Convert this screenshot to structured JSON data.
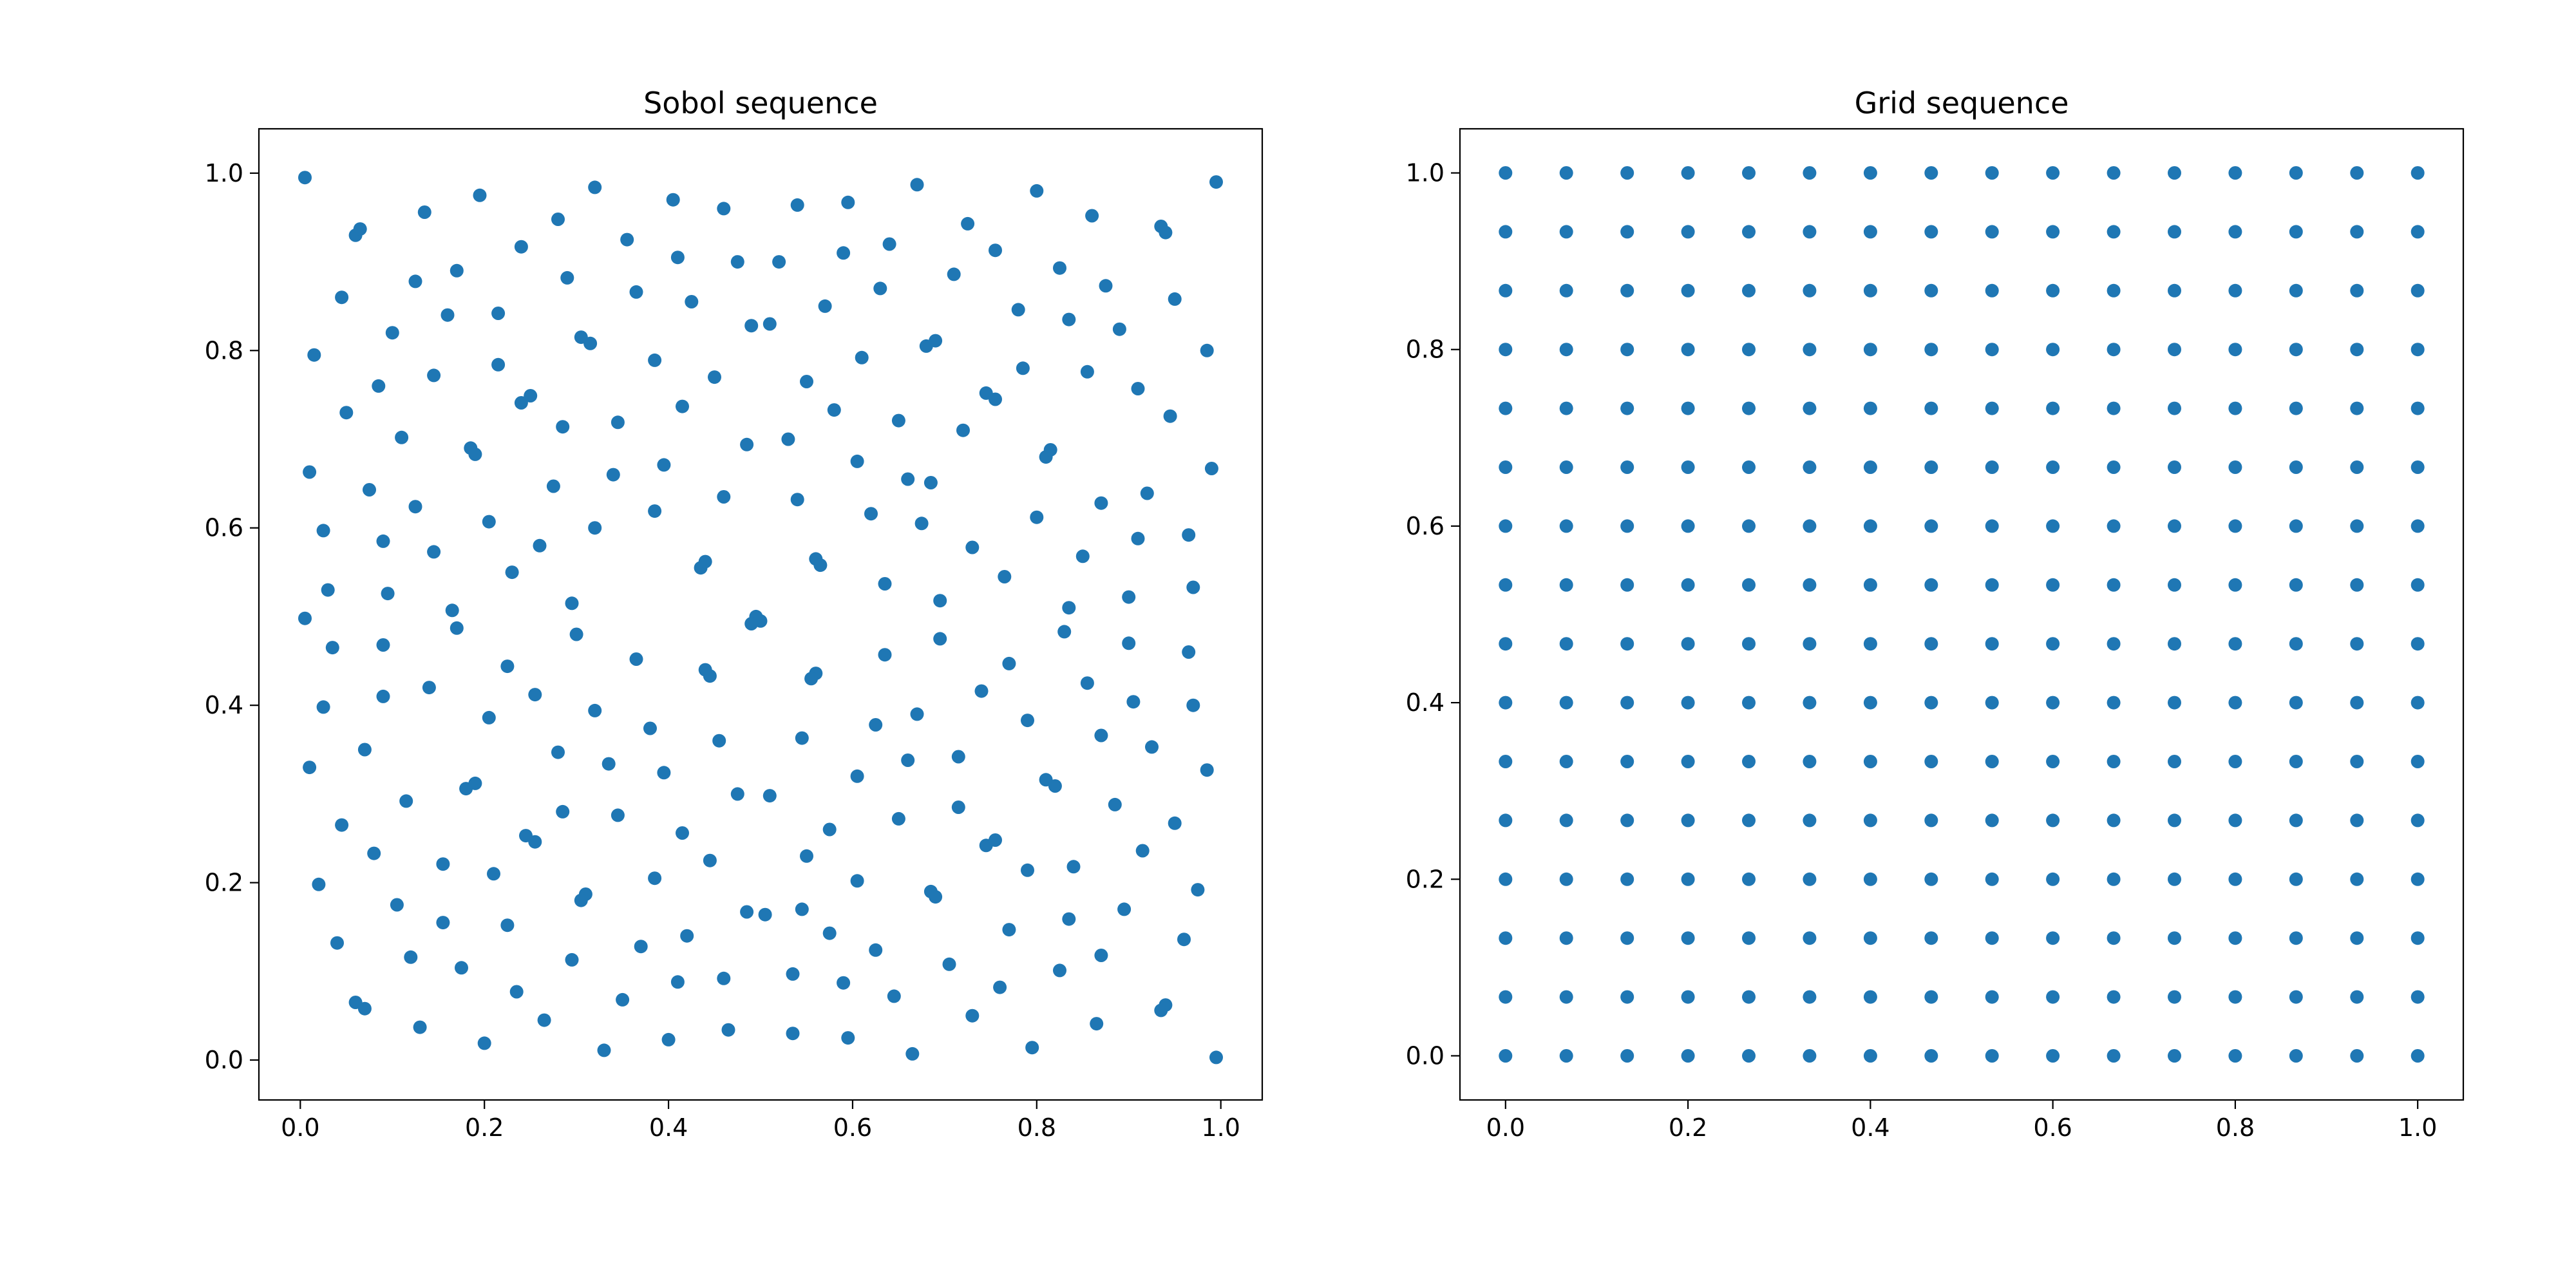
{
  "chart_data": [
    {
      "type": "scatter",
      "title": "Sobol sequence",
      "xlabel": "",
      "ylabel": "",
      "xlim": [
        -0.045,
        1.045
      ],
      "ylim": [
        -0.045,
        1.05
      ],
      "xticks": [
        "0.0",
        "0.2",
        "0.4",
        "0.6",
        "0.8",
        "1.0"
      ],
      "yticks": [
        "0.0",
        "0.2",
        "0.4",
        "0.6",
        "0.8",
        "1.0"
      ],
      "grid": false,
      "color": "#1f77b4",
      "points": [
        [
          0.005,
          0.995
        ],
        [
          0.06,
          0.93
        ],
        [
          0.065,
          0.937
        ],
        [
          0.135,
          0.956
        ],
        [
          0.195,
          0.975
        ],
        [
          0.32,
          0.984
        ],
        [
          0.405,
          0.97
        ],
        [
          0.46,
          0.96
        ],
        [
          0.54,
          0.964
        ],
        [
          0.595,
          0.967
        ],
        [
          0.67,
          0.987
        ],
        [
          0.8,
          0.98
        ],
        [
          0.995,
          0.99
        ],
        [
          0.935,
          0.94
        ],
        [
          0.94,
          0.933
        ],
        [
          0.86,
          0.952
        ],
        [
          0.725,
          0.943
        ],
        [
          0.755,
          0.913
        ],
        [
          0.64,
          0.92
        ],
        [
          0.59,
          0.91
        ],
        [
          0.52,
          0.9
        ],
        [
          0.475,
          0.9
        ],
        [
          0.41,
          0.905
        ],
        [
          0.355,
          0.925
        ],
        [
          0.28,
          0.948
        ],
        [
          0.24,
          0.917
        ],
        [
          0.17,
          0.89
        ],
        [
          0.125,
          0.878
        ],
        [
          0.045,
          0.86
        ],
        [
          0.015,
          0.795
        ],
        [
          0.1,
          0.82
        ],
        [
          0.16,
          0.84
        ],
        [
          0.215,
          0.842
        ],
        [
          0.29,
          0.882
        ],
        [
          0.365,
          0.866
        ],
        [
          0.425,
          0.855
        ],
        [
          0.49,
          0.828
        ],
        [
          0.51,
          0.83
        ],
        [
          0.57,
          0.85
        ],
        [
          0.63,
          0.87
        ],
        [
          0.71,
          0.886
        ],
        [
          0.78,
          0.846
        ],
        [
          0.825,
          0.893
        ],
        [
          0.875,
          0.873
        ],
        [
          0.95,
          0.858
        ],
        [
          0.985,
          0.8
        ],
        [
          0.89,
          0.824
        ],
        [
          0.835,
          0.835
        ],
        [
          0.785,
          0.78
        ],
        [
          0.68,
          0.805
        ],
        [
          0.69,
          0.811
        ],
        [
          0.61,
          0.792
        ],
        [
          0.55,
          0.765
        ],
        [
          0.45,
          0.77
        ],
        [
          0.385,
          0.789
        ],
        [
          0.305,
          0.815
        ],
        [
          0.315,
          0.808
        ],
        [
          0.215,
          0.784
        ],
        [
          0.145,
          0.772
        ],
        [
          0.085,
          0.76
        ],
        [
          0.05,
          0.73
        ],
        [
          0.11,
          0.702
        ],
        [
          0.185,
          0.69
        ],
        [
          0.19,
          0.683
        ],
        [
          0.24,
          0.741
        ],
        [
          0.25,
          0.749
        ],
        [
          0.285,
          0.714
        ],
        [
          0.345,
          0.719
        ],
        [
          0.415,
          0.737
        ],
        [
          0.485,
          0.694
        ],
        [
          0.53,
          0.7
        ],
        [
          0.58,
          0.733
        ],
        [
          0.65,
          0.721
        ],
        [
          0.72,
          0.71
        ],
        [
          0.745,
          0.752
        ],
        [
          0.755,
          0.745
        ],
        [
          0.81,
          0.68
        ],
        [
          0.815,
          0.688
        ],
        [
          0.855,
          0.776
        ],
        [
          0.91,
          0.757
        ],
        [
          0.945,
          0.726
        ],
        [
          0.99,
          0.667
        ],
        [
          0.92,
          0.639
        ],
        [
          0.87,
          0.628
        ],
        [
          0.85,
          0.568
        ],
        [
          0.8,
          0.612
        ],
        [
          0.73,
          0.578
        ],
        [
          0.685,
          0.651
        ],
        [
          0.66,
          0.655
        ],
        [
          0.605,
          0.675
        ],
        [
          0.54,
          0.632
        ],
        [
          0.46,
          0.635
        ],
        [
          0.395,
          0.671
        ],
        [
          0.34,
          0.66
        ],
        [
          0.275,
          0.647
        ],
        [
          0.205,
          0.607
        ],
        [
          0.125,
          0.624
        ],
        [
          0.075,
          0.643
        ],
        [
          0.01,
          0.663
        ],
        [
          0.025,
          0.597
        ],
        [
          0.09,
          0.585
        ],
        [
          0.145,
          0.573
        ],
        [
          0.23,
          0.55
        ],
        [
          0.26,
          0.58
        ],
        [
          0.32,
          0.6
        ],
        [
          0.385,
          0.619
        ],
        [
          0.435,
          0.555
        ],
        [
          0.44,
          0.562
        ],
        [
          0.56,
          0.565
        ],
        [
          0.565,
          0.558
        ],
        [
          0.62,
          0.616
        ],
        [
          0.675,
          0.605
        ],
        [
          0.765,
          0.545
        ],
        [
          0.635,
          0.537
        ],
        [
          0.695,
          0.518
        ],
        [
          0.835,
          0.51
        ],
        [
          0.9,
          0.522
        ],
        [
          0.91,
          0.588
        ],
        [
          0.965,
          0.592
        ],
        [
          0.97,
          0.533
        ],
        [
          0.965,
          0.46
        ],
        [
          0.9,
          0.47
        ],
        [
          0.83,
          0.483
        ],
        [
          0.77,
          0.447
        ],
        [
          0.695,
          0.475
        ],
        [
          0.635,
          0.457
        ],
        [
          0.56,
          0.436
        ],
        [
          0.555,
          0.43
        ],
        [
          0.495,
          0.5
        ],
        [
          0.5,
          0.495
        ],
        [
          0.49,
          0.492
        ],
        [
          0.44,
          0.44
        ],
        [
          0.445,
          0.433
        ],
        [
          0.365,
          0.452
        ],
        [
          0.3,
          0.48
        ],
        [
          0.295,
          0.515
        ],
        [
          0.225,
          0.444
        ],
        [
          0.17,
          0.487
        ],
        [
          0.165,
          0.507
        ],
        [
          0.095,
          0.526
        ],
        [
          0.03,
          0.53
        ],
        [
          0.005,
          0.498
        ],
        [
          0.035,
          0.465
        ],
        [
          0.09,
          0.468
        ],
        [
          0.09,
          0.41
        ],
        [
          0.14,
          0.42
        ],
        [
          0.205,
          0.386
        ],
        [
          0.255,
          0.412
        ],
        [
          0.32,
          0.394
        ],
        [
          0.38,
          0.374
        ],
        [
          0.455,
          0.36
        ],
        [
          0.545,
          0.363
        ],
        [
          0.625,
          0.378
        ],
        [
          0.67,
          0.39
        ],
        [
          0.74,
          0.416
        ],
        [
          0.79,
          0.383
        ],
        [
          0.855,
          0.425
        ],
        [
          0.87,
          0.366
        ],
        [
          0.905,
          0.404
        ],
        [
          0.925,
          0.353
        ],
        [
          0.97,
          0.4
        ],
        [
          0.985,
          0.327
        ],
        [
          0.95,
          0.267
        ],
        [
          0.915,
          0.236
        ],
        [
          0.885,
          0.288
        ],
        [
          0.81,
          0.316
        ],
        [
          0.82,
          0.309
        ],
        [
          0.715,
          0.342
        ],
        [
          0.66,
          0.338
        ],
        [
          0.605,
          0.32
        ],
        [
          0.55,
          0.23
        ],
        [
          0.51,
          0.298
        ],
        [
          0.475,
          0.3
        ],
        [
          0.395,
          0.324
        ],
        [
          0.335,
          0.334
        ],
        [
          0.28,
          0.347
        ],
        [
          0.18,
          0.306
        ],
        [
          0.19,
          0.312
        ],
        [
          0.115,
          0.292
        ],
        [
          0.07,
          0.35
        ],
        [
          0.025,
          0.398
        ],
        [
          0.01,
          0.33
        ],
        [
          0.045,
          0.265
        ],
        [
          0.08,
          0.233
        ],
        [
          0.155,
          0.221
        ],
        [
          0.245,
          0.253
        ],
        [
          0.255,
          0.246
        ],
        [
          0.285,
          0.28
        ],
        [
          0.345,
          0.276
        ],
        [
          0.415,
          0.256
        ],
        [
          0.445,
          0.225
        ],
        [
          0.575,
          0.26
        ],
        [
          0.65,
          0.272
        ],
        [
          0.715,
          0.285
        ],
        [
          0.745,
          0.242
        ],
        [
          0.755,
          0.248
        ],
        [
          0.79,
          0.214
        ],
        [
          0.84,
          0.218
        ],
        [
          0.895,
          0.17
        ],
        [
          0.975,
          0.192
        ],
        [
          0.96,
          0.136
        ],
        [
          0.935,
          0.056
        ],
        [
          0.94,
          0.062
        ],
        [
          0.87,
          0.118
        ],
        [
          0.825,
          0.101
        ],
        [
          0.835,
          0.159
        ],
        [
          0.77,
          0.147
        ],
        [
          0.685,
          0.19
        ],
        [
          0.69,
          0.184
        ],
        [
          0.605,
          0.202
        ],
        [
          0.545,
          0.17
        ],
        [
          0.485,
          0.167
        ],
        [
          0.505,
          0.164
        ],
        [
          0.575,
          0.143
        ],
        [
          0.625,
          0.124
        ],
        [
          0.705,
          0.108
        ],
        [
          0.76,
          0.082
        ],
        [
          0.73,
          0.05
        ],
        [
          0.645,
          0.072
        ],
        [
          0.59,
          0.087
        ],
        [
          0.535,
          0.097
        ],
        [
          0.46,
          0.092
        ],
        [
          0.42,
          0.14
        ],
        [
          0.41,
          0.088
        ],
        [
          0.37,
          0.128
        ],
        [
          0.385,
          0.205
        ],
        [
          0.31,
          0.187
        ],
        [
          0.305,
          0.18
        ],
        [
          0.21,
          0.21
        ],
        [
          0.225,
          0.152
        ],
        [
          0.155,
          0.155
        ],
        [
          0.105,
          0.175
        ],
        [
          0.02,
          0.198
        ],
        [
          0.04,
          0.132
        ],
        [
          0.12,
          0.116
        ],
        [
          0.175,
          0.104
        ],
        [
          0.235,
          0.077
        ],
        [
          0.295,
          0.113
        ],
        [
          0.35,
          0.068
        ],
        [
          0.265,
          0.045
        ],
        [
          0.13,
          0.037
        ],
        [
          0.06,
          0.065
        ],
        [
          0.07,
          0.058
        ],
        [
          0.2,
          0.019
        ],
        [
          0.33,
          0.011
        ],
        [
          0.4,
          0.023
        ],
        [
          0.465,
          0.034
        ],
        [
          0.535,
          0.03
        ],
        [
          0.595,
          0.025
        ],
        [
          0.665,
          0.007
        ],
        [
          0.795,
          0.014
        ],
        [
          0.865,
          0.041
        ],
        [
          0.995,
          0.003
        ]
      ]
    },
    {
      "type": "scatter",
      "title": "Grid sequence",
      "xlabel": "",
      "ylabel": "",
      "xlim": [
        -0.05,
        1.05
      ],
      "ylim": [
        -0.05,
        1.05
      ],
      "xticks": [
        "0.0",
        "0.2",
        "0.4",
        "0.6",
        "0.8",
        "1.0"
      ],
      "yticks": [
        "0.0",
        "0.2",
        "0.4",
        "0.6",
        "0.8",
        "1.0"
      ],
      "grid": false,
      "color": "#1f77b4",
      "grid_points_per_axis": 16,
      "x_range": [
        0.0,
        1.0
      ],
      "y_range": [
        0.0,
        1.0
      ]
    }
  ]
}
